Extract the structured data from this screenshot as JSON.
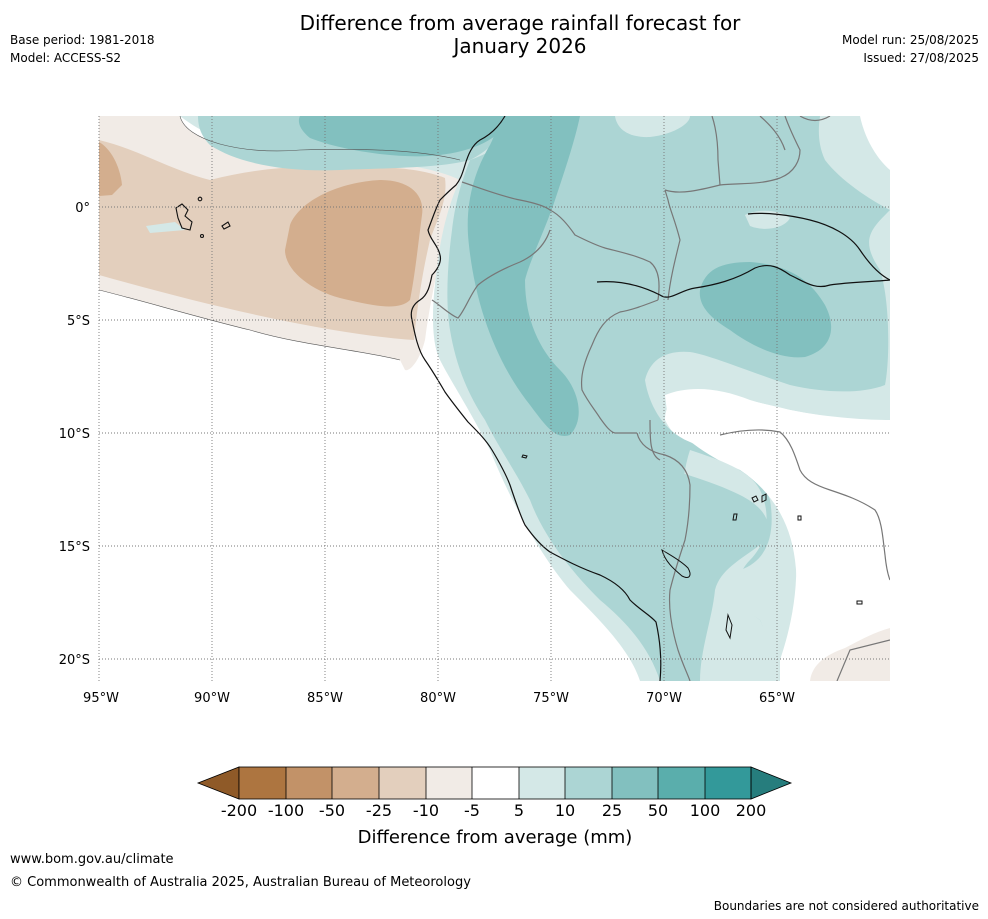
{
  "header": {
    "title_line1": "Difference from average rainfall forecast for",
    "title_line2": "January 2026",
    "base_period": "Base period: 1981-2018",
    "model": "Model: ACCESS-S2",
    "model_run": "Model run: 25/08/2025",
    "issued": "Issued: 27/08/2025"
  },
  "map": {
    "lat_labels": [
      "0°",
      "5°S",
      "10°S",
      "15°S",
      "20°S"
    ],
    "lon_labels": [
      "95°W",
      "90°W",
      "85°W",
      "80°W",
      "75°W",
      "70°W",
      "65°W"
    ]
  },
  "colorbar": {
    "title": "Difference from average (mm)",
    "tick_labels": [
      "-200",
      "-100",
      "-50",
      "-25",
      "-10",
      "-5",
      "5",
      "10",
      "25",
      "50",
      "100",
      "200"
    ],
    "colors": [
      "#8f5a28",
      "#ad7540",
      "#c29268",
      "#d3ae8e",
      "#e3cfbd",
      "#f1ebe6",
      "#ffffff",
      "#d4e8e7",
      "#acd5d4",
      "#82c0bf",
      "#5aaeac",
      "#33999a",
      "#267d7d"
    ]
  },
  "footer": {
    "url": "www.bom.gov.au/climate",
    "copyright": "© Commonwealth of Australia 2025, Australian Bureau of Meteorology",
    "note": "Boundaries are not considered authoritative"
  }
}
